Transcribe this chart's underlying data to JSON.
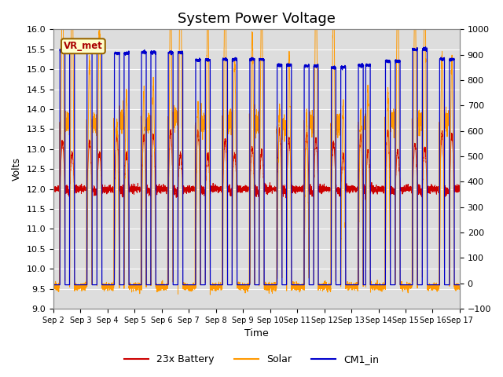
{
  "title": "System Power Voltage",
  "xlabel": "Time",
  "ylabel_left": "Volts",
  "ylabel_right": "",
  "ylim_left": [
    9.0,
    16.0
  ],
  "ylim_right": [
    -100,
    1000
  ],
  "yticks_left": [
    9.0,
    9.5,
    10.0,
    10.5,
    11.0,
    11.5,
    12.0,
    12.5,
    13.0,
    13.5,
    14.0,
    14.5,
    15.0,
    15.5,
    16.0
  ],
  "yticks_right": [
    -100,
    0,
    100,
    200,
    300,
    400,
    500,
    600,
    700,
    800,
    900,
    1000
  ],
  "xtick_labels": [
    "Sep 2",
    "Sep 3",
    "Sep 4",
    "Sep 5",
    "Sep 6",
    "Sep 7",
    "Sep 8",
    "Sep 9",
    "Sep 10",
    "Sep 11",
    "Sep 12",
    "Sep 13",
    "Sep 14",
    "Sep 15",
    "Sep 16",
    "Sep 17"
  ],
  "legend_labels": [
    "23x Battery",
    "Solar",
    "CM1_in"
  ],
  "legend_colors": [
    "#cc0000",
    "#ff9900",
    "#0000cc"
  ],
  "annotation_text": "VR_met",
  "annotation_bg": "#ffffcc",
  "annotation_border": "#996600",
  "bg_color": "#dddddd",
  "plot_bg": "#dddddd",
  "grid_color": "#ffffff",
  "title_fontsize": 13,
  "num_days": 15,
  "pts_per_day": 288
}
